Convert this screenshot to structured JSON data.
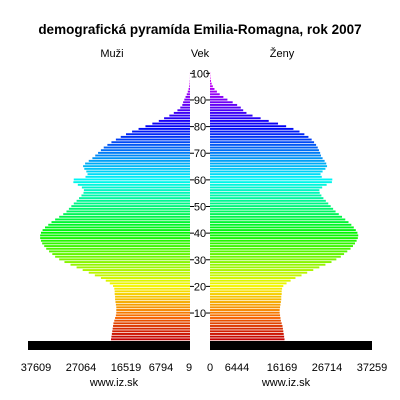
{
  "chart_data": {
    "type": "bar",
    "title": "demografická pyramída Emilia-Romagna, rok 2007",
    "left_label": "Muži",
    "center_label": "Vek",
    "right_label": "Ženy",
    "footer_left": "www.iz.sk",
    "footer_right": "www.iz.sk",
    "left_tick_labels": [
      "37609",
      "27064",
      "16519",
      "6794",
      "9"
    ],
    "right_tick_labels": [
      "0",
      "6444",
      "16169",
      "26714",
      "37259"
    ],
    "age_tick_labels": [
      "10",
      "20",
      "30",
      "40",
      "50",
      "60",
      "70",
      "80",
      "90",
      "100"
    ],
    "x_range": [
      0,
      40000
    ],
    "age_range": [
      0,
      100
    ],
    "men_values_by_age": [
      19500,
      19400,
      19300,
      19200,
      19100,
      19000,
      18900,
      18700,
      18500,
      18300,
      18200,
      18200,
      18200,
      18300,
      18400,
      18500,
      18500,
      18600,
      18600,
      18700,
      19000,
      19800,
      20800,
      22000,
      23500,
      25000,
      26500,
      28000,
      29500,
      31000,
      32300,
      33300,
      34000,
      34800,
      35500,
      36000,
      36500,
      36800,
      37000,
      37000,
      36800,
      36400,
      35800,
      35000,
      34200,
      33300,
      32300,
      31300,
      30500,
      29900,
      29300,
      28700,
      28000,
      27400,
      26800,
      26300,
      26200,
      26700,
      27700,
      28800,
      28700,
      25800,
      25300,
      25600,
      26100,
      26400,
      25900,
      25000,
      24100,
      23400,
      22700,
      22000,
      21300,
      20400,
      19400,
      18300,
      17100,
      15800,
      14300,
      12700,
      11000,
      9300,
      7700,
      6400,
      5100,
      4000,
      3100,
      2400,
      1900,
      1700,
      1400,
      1100,
      800,
      550,
      350,
      200,
      120,
      70,
      30,
      15,
      8
    ],
    "women_values_by_age": [
      18400,
      18300,
      18200,
      18100,
      18000,
      17900,
      17700,
      17500,
      17400,
      17300,
      17200,
      17200,
      17300,
      17400,
      17500,
      17600,
      17600,
      17700,
      17700,
      17800,
      18100,
      18900,
      19900,
      21100,
      22600,
      24000,
      25500,
      27000,
      28500,
      30000,
      31200,
      32300,
      33100,
      33900,
      34700,
      35300,
      35800,
      36200,
      36500,
      36600,
      36400,
      36000,
      35500,
      34900,
      34200,
      33400,
      32600,
      31800,
      31000,
      30400,
      29800,
      29200,
      28600,
      28000,
      27500,
      27100,
      27000,
      27700,
      28800,
      30100,
      30200,
      27600,
      27300,
      27800,
      28500,
      28900,
      28700,
      28300,
      27800,
      27400,
      27200,
      26900,
      26600,
      26200,
      25700,
      25100,
      24300,
      23300,
      22100,
      20600,
      18800,
      16800,
      14500,
      12500,
      10500,
      9000,
      8200,
      7600,
      6700,
      5600,
      4300,
      3300,
      2400,
      1700,
      1100,
      700,
      420,
      250,
      130,
      70,
      40
    ],
    "colors": {
      "hue_start_age0": "#b40000",
      "hue_end_age100": "#ff00ff",
      "baseline_bar": "#000000",
      "text": "#000000"
    }
  }
}
